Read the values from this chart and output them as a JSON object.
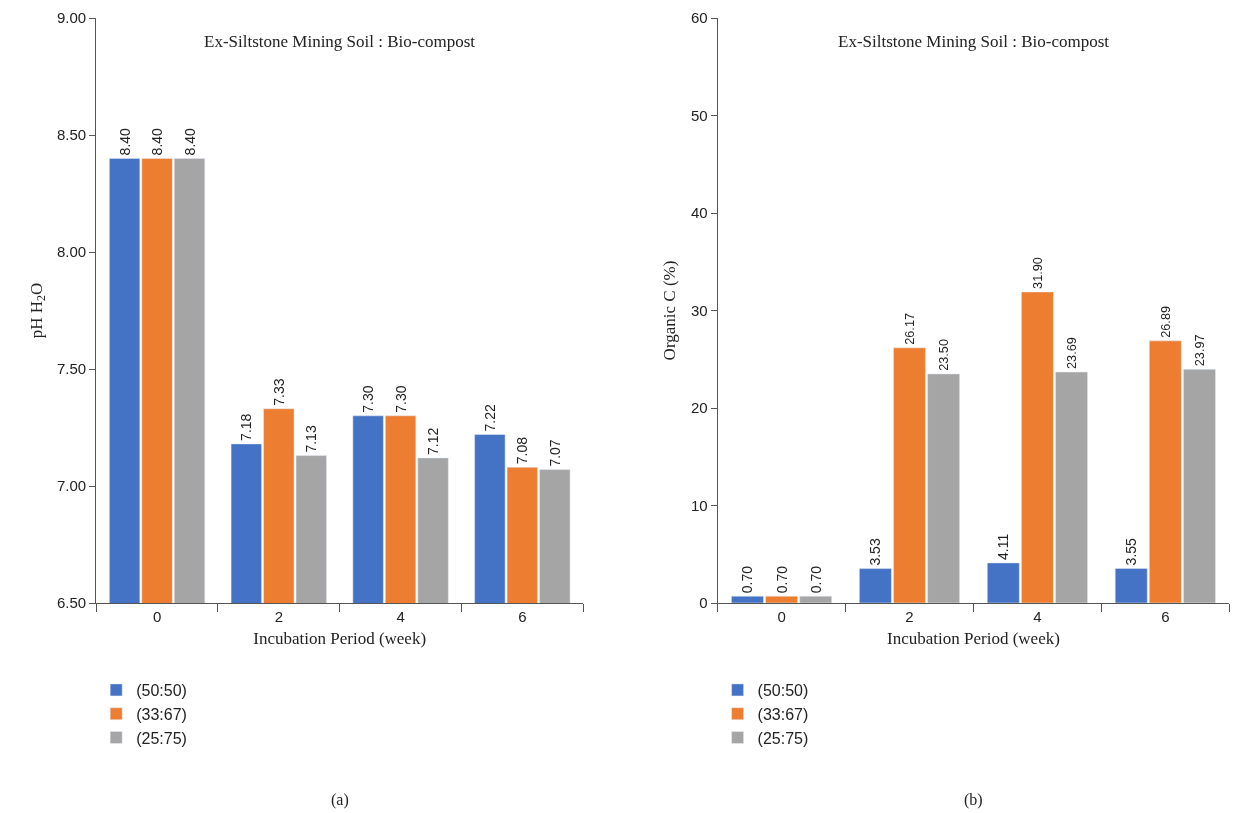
{
  "chart_data": [
    {
      "type": "bar",
      "title": "Ex-Siltstone Mining Soil : Bio-compost",
      "xlabel": "Incubation Period (week)",
      "ylabel": "pH H$_{2}$O",
      "categories": [
        "0",
        "2",
        "4",
        "6"
      ],
      "series": [
        {
          "name": "(50:50)",
          "color": "#4472c4",
          "values": [
            8.4,
            7.18,
            7.3,
            7.22
          ],
          "value_labels": [
            "8.40",
            "7.18",
            "7.30",
            "7.22"
          ]
        },
        {
          "name": "(33:67)",
          "color": "#ed7d31",
          "values": [
            8.4,
            7.33,
            7.3,
            7.08
          ],
          "value_labels": [
            "8.40",
            "7.33",
            "7.30",
            "7.08"
          ]
        },
        {
          "name": "(25:75)",
          "color": "#a5a5a5",
          "values": [
            8.4,
            7.13,
            7.12,
            7.07
          ],
          "value_labels": [
            "8.40",
            "7.13",
            "7.12",
            "7.07"
          ]
        }
      ],
      "ylim": [
        6.5,
        9.0
      ],
      "yticks": [
        {
          "value": 6.5,
          "label": "6.50"
        },
        {
          "value": 7.0,
          "label": "7.00"
        },
        {
          "value": 7.5,
          "label": "7.50"
        },
        {
          "value": 8.0,
          "label": "8.00"
        },
        {
          "value": 8.5,
          "label": "8.50"
        },
        {
          "value": 9.0,
          "label": "9.00"
        }
      ],
      "legend": "bottom",
      "annotations": [
        "(a)"
      ]
    },
    {
      "type": "bar",
      "title": "Ex-Siltstone Mining Soil : Bio-compost",
      "xlabel": "Incubation Period (week)",
      "ylabel": "Organic C (%)",
      "categories": [
        "0",
        "2",
        "4",
        "6"
      ],
      "series": [
        {
          "name": "(50:50)",
          "color": "#4472c4",
          "values": [
            0.7,
            3.53,
            4.11,
            3.55
          ],
          "value_labels": [
            "0.70",
            "3.53",
            "4.11",
            "3.55"
          ]
        },
        {
          "name": "(33:67)",
          "color": "#ed7d31",
          "values": [
            0.7,
            26.17,
            31.9,
            26.89
          ],
          "value_labels": [
            "0.70",
            "26.17",
            "31.90",
            "26.89"
          ]
        },
        {
          "name": "(25:75)",
          "color": "#a5a5a5",
          "values": [
            0.7,
            23.5,
            23.69,
            23.97
          ],
          "value_labels": [
            "0.70",
            "23.50",
            "23.69",
            "23.97"
          ]
        }
      ],
      "ylim": [
        0,
        60
      ],
      "yticks": [
        0,
        10,
        20,
        30,
        40,
        50,
        60
      ],
      "legend": "bottom",
      "annotations": [
        "(b)"
      ]
    }
  ]
}
